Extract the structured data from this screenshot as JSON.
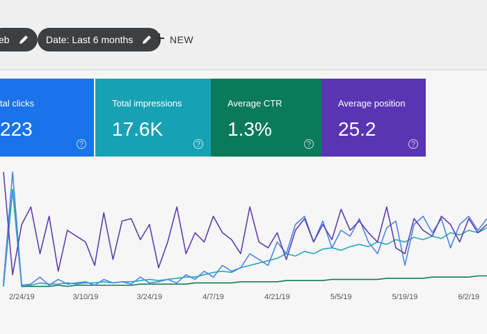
{
  "toolbar": {
    "chips": [
      "eb",
      "Date: Last 6 months"
    ],
    "new_button": "NEW"
  },
  "cards": [
    {
      "label": "tal clicks",
      "value": "223",
      "color": "#1a73e8"
    },
    {
      "label": "Total impressions",
      "value": "17.6K",
      "color": "#17a2b4"
    },
    {
      "label": "Average CTR",
      "value": "1.3%",
      "color": "#0b7a5a"
    },
    {
      "label": "Average position",
      "value": "25.2",
      "color": "#5a35b3"
    }
  ],
  "chart": {
    "type": "line",
    "categories": [
      null,
      null,
      "2/24/19",
      null,
      null,
      null,
      null,
      null,
      null,
      "3/10/19",
      null,
      null,
      null,
      null,
      null,
      null,
      "3/24/19",
      null,
      null,
      null,
      null,
      null,
      null,
      "4/7/19",
      null,
      null,
      null,
      null,
      null,
      null,
      "4/21/19",
      null,
      null,
      null,
      null,
      null,
      null,
      "5/5/19",
      null,
      null,
      null,
      null,
      null,
      null,
      "5/19/19",
      null,
      null,
      null,
      null,
      null,
      null,
      "6/2/19",
      null,
      null
    ],
    "series": [
      {
        "color": "#5c3fb0",
        "values": [
          100,
          12,
          55,
          70,
          30,
          62,
          15,
          50,
          45,
          40,
          20,
          65,
          25,
          58,
          60,
          42,
          55,
          18,
          40,
          70,
          30,
          48,
          40,
          62,
          48,
          42,
          30,
          70,
          40,
          35,
          48,
          25,
          50,
          60,
          40,
          55,
          42,
          68,
          50,
          58,
          48,
          40,
          70,
          35,
          30,
          60,
          50,
          45,
          62,
          55,
          40,
          60,
          48,
          55
        ]
      },
      {
        "color": "#4a86e8",
        "values": [
          5,
          100,
          3,
          4,
          10,
          3,
          8,
          4,
          5,
          6,
          3,
          8,
          5,
          6,
          4,
          10,
          5,
          6,
          8,
          5,
          12,
          8,
          15,
          10,
          20,
          15,
          18,
          30,
          25,
          20,
          40,
          30,
          55,
          62,
          40,
          58,
          35,
          50,
          45,
          60,
          40,
          30,
          52,
          58,
          20,
          55,
          62,
          48,
          60,
          35,
          55,
          62,
          50,
          60
        ]
      },
      {
        "color": "#26a8b8",
        "values": [
          3,
          85,
          3,
          3,
          5,
          4,
          4,
          5,
          4,
          5,
          5,
          6,
          5,
          6,
          6,
          7,
          8,
          7,
          8,
          9,
          10,
          10,
          12,
          14,
          15,
          14,
          18,
          20,
          22,
          24,
          26,
          30,
          28,
          32,
          30,
          34,
          35,
          33,
          36,
          38,
          36,
          40,
          38,
          42,
          40,
          44,
          42,
          45,
          43,
          48,
          46,
          50,
          48,
          52
        ]
      },
      {
        "color": "#137a5c",
        "values": [
          2,
          85,
          2,
          2,
          2,
          2,
          3,
          2,
          3,
          3,
          3,
          3,
          3,
          3,
          3,
          4,
          4,
          4,
          4,
          4,
          4,
          5,
          5,
          5,
          5,
          5,
          6,
          6,
          6,
          6,
          6,
          7,
          7,
          7,
          7,
          7,
          8,
          8,
          8,
          8,
          8,
          8,
          9,
          9,
          9,
          9,
          9,
          10,
          10,
          10,
          10,
          10,
          11,
          11
        ]
      }
    ]
  }
}
